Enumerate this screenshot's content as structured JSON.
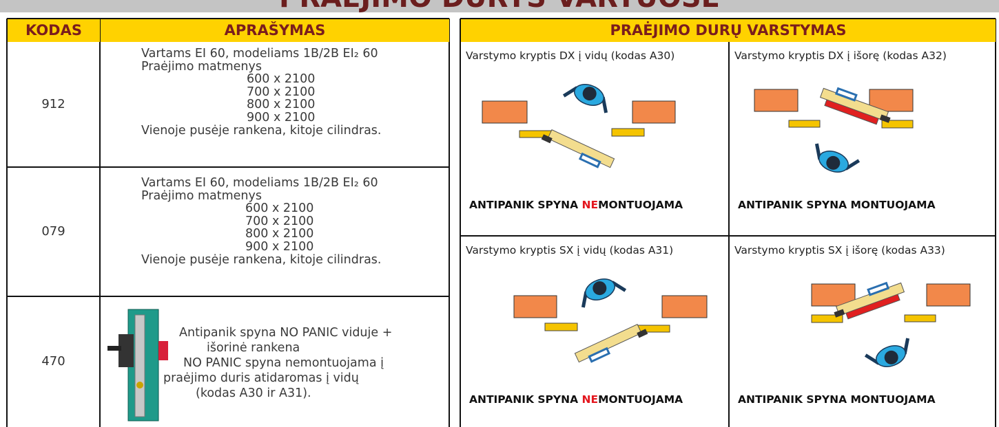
{
  "header": {
    "title": "PRAĖJIMO DURYS VARTUOSE"
  },
  "left_table": {
    "columns": [
      "KODAS",
      "APRAŠYMAS"
    ],
    "rows": [
      {
        "code": "912",
        "lines": [
          "Vartams EI 60, modeliams 1B/2B EI₂ 60",
          "Praėjimo matmenys",
          "600 x 2100",
          "700 x 2100",
          "800 x 2100",
          "900 x 2100",
          "Vienoje pusėje rankena, kitoje cilindras."
        ]
      },
      {
        "code": "079",
        "lines": [
          "Vartams EI 60, modeliams 1B/2B EI₂ 60",
          "Praėjimo matmenys",
          "600 x 2100",
          "700 x 2100",
          "800 x 2100",
          "900 x 2100",
          "Vienoje pusėje rankena, kitoje cilindras."
        ]
      },
      {
        "code": "470",
        "lines": [
          "Antipanik spyna NO PANIC viduje +",
          "išorinė rankena",
          "NO PANIC spyna nemontuojama į",
          "praėjimo duris atidaromas į vidų",
          "(kodas A30 ir A31)."
        ]
      }
    ]
  },
  "right_table": {
    "title": "PRAĖJIMO DURŲ VARSTYMAS",
    "cells": [
      {
        "caption": "Varstymo kryptis DX į vidų (kodas A30)",
        "note": [
          "ANTIPANIK SPYNA ",
          "NE",
          "MONTUOJAMA"
        ]
      },
      {
        "caption": "Varstymo kryptis DX į išorę (kodas A32)",
        "note": [
          "ANTIPANIK SPYNA MONTUOJAMA"
        ]
      },
      {
        "caption": "Varstymo kryptis SX į vidų (kodas A31)",
        "note": [
          "ANTIPANIK SPYNA ",
          "NE",
          "MONTUOJAMA"
        ]
      },
      {
        "caption": "Varstymo kryptis SX į išorę (kodas A33)",
        "note": [
          "ANTIPANIK SPYNA MONTUOJAMA"
        ]
      }
    ]
  }
}
